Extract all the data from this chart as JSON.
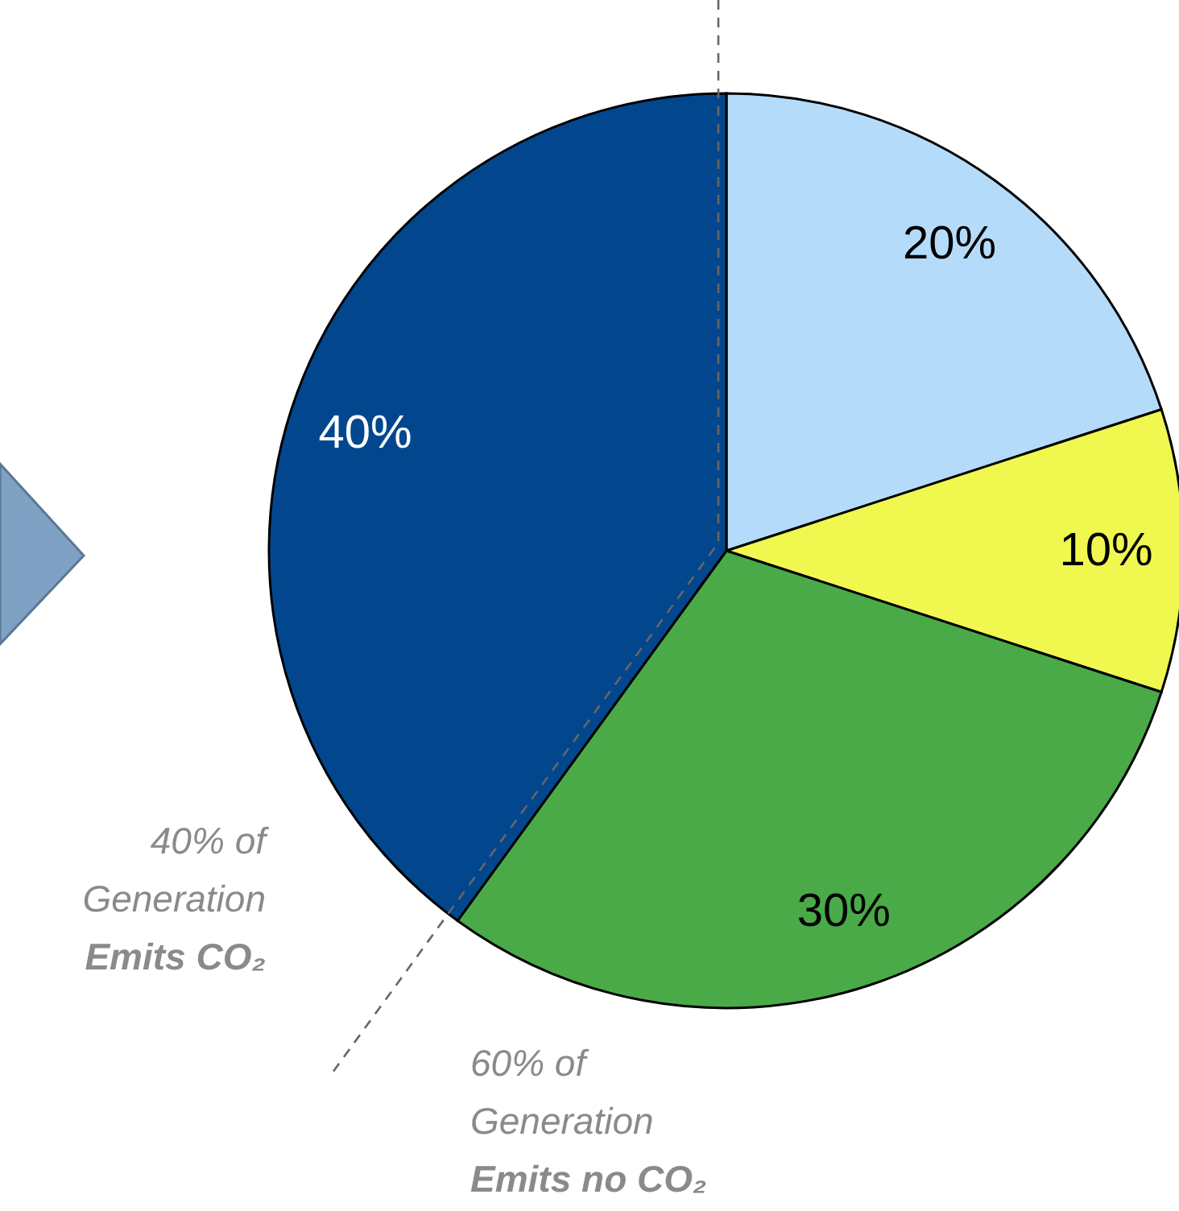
{
  "chart_data": {
    "type": "pie",
    "categories": [
      null,
      null,
      null,
      null
    ],
    "values": [
      20,
      10,
      30,
      40
    ],
    "colors": [
      "#b4dcfa",
      "#f0f850",
      "#4aaa48",
      "#02478e"
    ],
    "value_labels": [
      "20%",
      "10%",
      "30%",
      "40%"
    ],
    "legend": false,
    "annotations": [
      "40% of\nGeneration\nEmits CO₂",
      "60% of\nGeneration\nEmits no CO₂"
    ]
  }
}
